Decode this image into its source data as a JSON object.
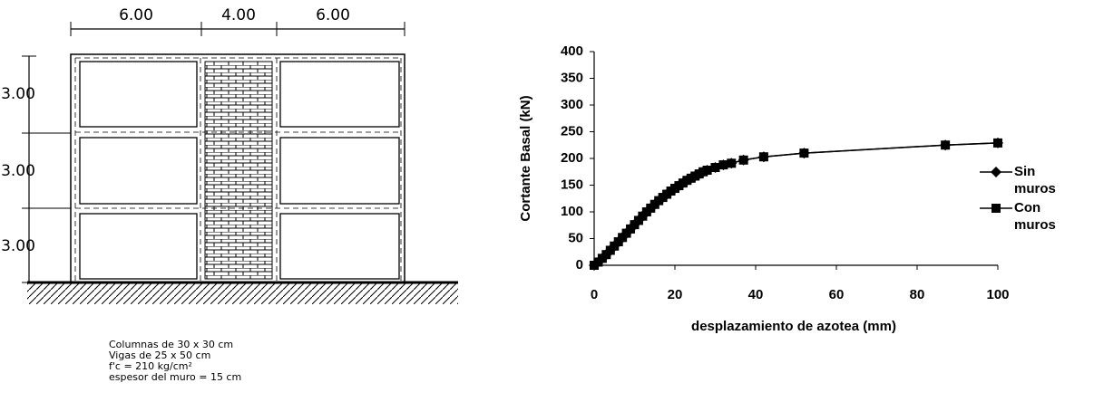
{
  "diagram": {
    "spans": [
      "6.00",
      "4.00",
      "6.00"
    ],
    "heights": [
      "3.00",
      "3.00",
      "3.00"
    ],
    "notes": [
      "Columnas de 30 x 30 cm",
      "Vigas de 25 x 50 cm",
      "f'c = 210 kg/cm²",
      "espesor del muro = 15 cm"
    ]
  },
  "chart_data": {
    "type": "line",
    "xlabel": "desplazamiento de azotea (mm)",
    "ylabel": "Cortante Basal (kN)",
    "x": [
      0,
      1,
      2,
      3,
      4,
      5,
      6,
      7,
      8,
      9,
      10,
      11,
      12,
      13,
      14,
      15,
      16,
      17,
      18,
      19,
      20,
      21,
      22,
      23,
      24,
      25,
      26,
      27,
      28,
      30,
      32,
      34,
      37,
      42,
      52,
      87,
      100
    ],
    "series": [
      {
        "name": "Sin muros",
        "color": "#000000",
        "marker": "diamond",
        "values": [
          0,
          6,
          13,
          20,
          28,
          36,
          44,
          52,
          60,
          68,
          76,
          84,
          92,
          100,
          107,
          114,
          121,
          127,
          133,
          139,
          144,
          149,
          154,
          159,
          163,
          167,
          171,
          175,
          178,
          183,
          188,
          191,
          197,
          203,
          210,
          225,
          229
        ]
      },
      {
        "name": "Con muros",
        "color": "#000000",
        "marker": "square",
        "values": [
          0,
          6,
          13,
          20,
          28,
          36,
          44,
          52,
          60,
          68,
          76,
          84,
          92,
          100,
          107,
          114,
          121,
          127,
          133,
          139,
          144,
          149,
          154,
          159,
          163,
          167,
          171,
          175,
          178,
          183,
          188,
          191,
          197,
          203,
          210,
          225,
          229
        ]
      }
    ],
    "xlim": [
      0,
      100
    ],
    "xticks": [
      0,
      20,
      40,
      60,
      80,
      100
    ],
    "ylim": [
      0,
      400
    ],
    "yticks": [
      0,
      50,
      100,
      150,
      200,
      250,
      300,
      350,
      400
    ]
  }
}
